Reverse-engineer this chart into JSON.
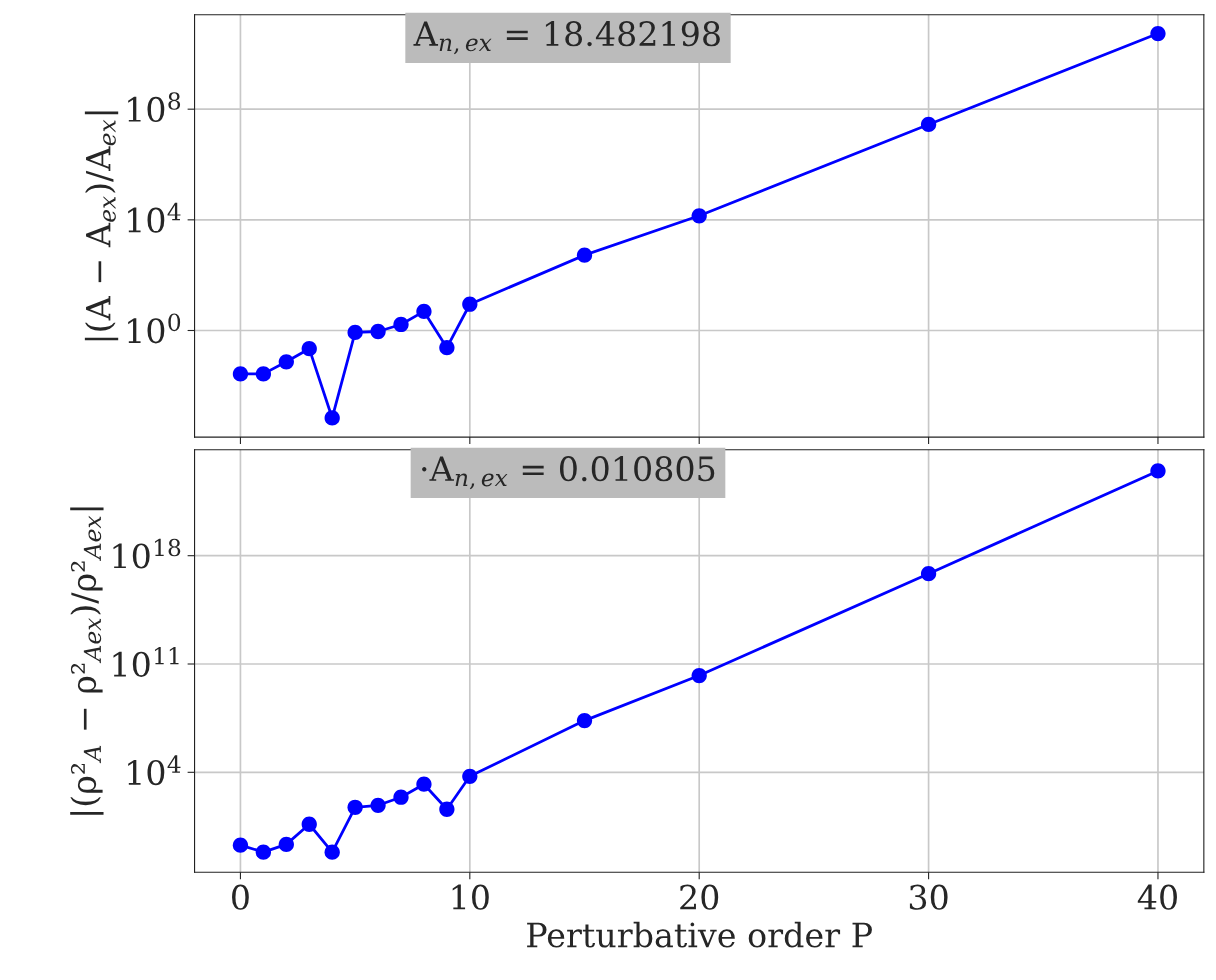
{
  "chart_data": [
    {
      "type": "line",
      "title": "A$_{n,ex}$ = 18.482198",
      "ylabel": "|(A − A$_{ex}$)/A$_{ex}$|",
      "x": [
        0,
        1,
        2,
        3,
        4,
        5,
        6,
        7,
        8,
        9,
        10,
        15,
        20,
        30,
        40
      ],
      "series": [
        {
          "color": "#0000ff",
          "values": [
            0.027,
            0.027,
            0.074,
            0.22,
            0.00069,
            0.85,
            0.92,
            1.65,
            4.9,
            0.24,
            8.9,
            530,
            14000,
            28000000,
            54000000000
          ]
        }
      ],
      "log": "y",
      "xlim": [
        -2,
        42
      ],
      "ylim": [
        0.00014,
        260000000000.0
      ],
      "xticks": [
        0,
        10,
        20,
        30,
        40
      ],
      "yticks": [
        {
          "value": 1,
          "label": "10$^{0}$"
        },
        {
          "value": 10000,
          "label": "10$^{4}$"
        },
        {
          "value": 100000000,
          "label": "10$^{8}$"
        }
      ],
      "grid": true,
      "marker": "circle",
      "line_style": "solid",
      "tick_labels": "y"
    },
    {
      "type": "line",
      "title": "·A$_{n,ex}$ = 0.010805",
      "xlabel": "Perturbative order P",
      "ylabel": "|(ρ²$_{A}$ − ρ²$_{Aex}$)/ρ²$_{Aex}$|",
      "x": [
        0,
        1,
        2,
        3,
        4,
        5,
        6,
        7,
        8,
        9,
        10,
        15,
        20,
        30,
        40
      ],
      "series": [
        {
          "color": "#0000ff",
          "values": [
            0.195,
            0.069,
            0.22,
            4.4,
            0.069,
            55,
            74,
            245,
            1700,
            41,
            5500,
            22000000,
            18000000000,
            6.9e+16,
            3e+23
          ]
        }
      ],
      "log": "y",
      "xlim": [
        -2,
        42
      ],
      "ylim": [
        0.0035,
        7e+24
      ],
      "xticks": [
        0,
        10,
        20,
        30,
        40
      ],
      "yticks": [
        {
          "value": 10000,
          "label": "10$^{4}$"
        },
        {
          "value": 100000000000,
          "label": "10$^{11}$"
        },
        {
          "value": 1e+18,
          "label": "10$^{18}$"
        }
      ],
      "grid": true,
      "marker": "circle",
      "line_style": "solid"
    }
  ]
}
